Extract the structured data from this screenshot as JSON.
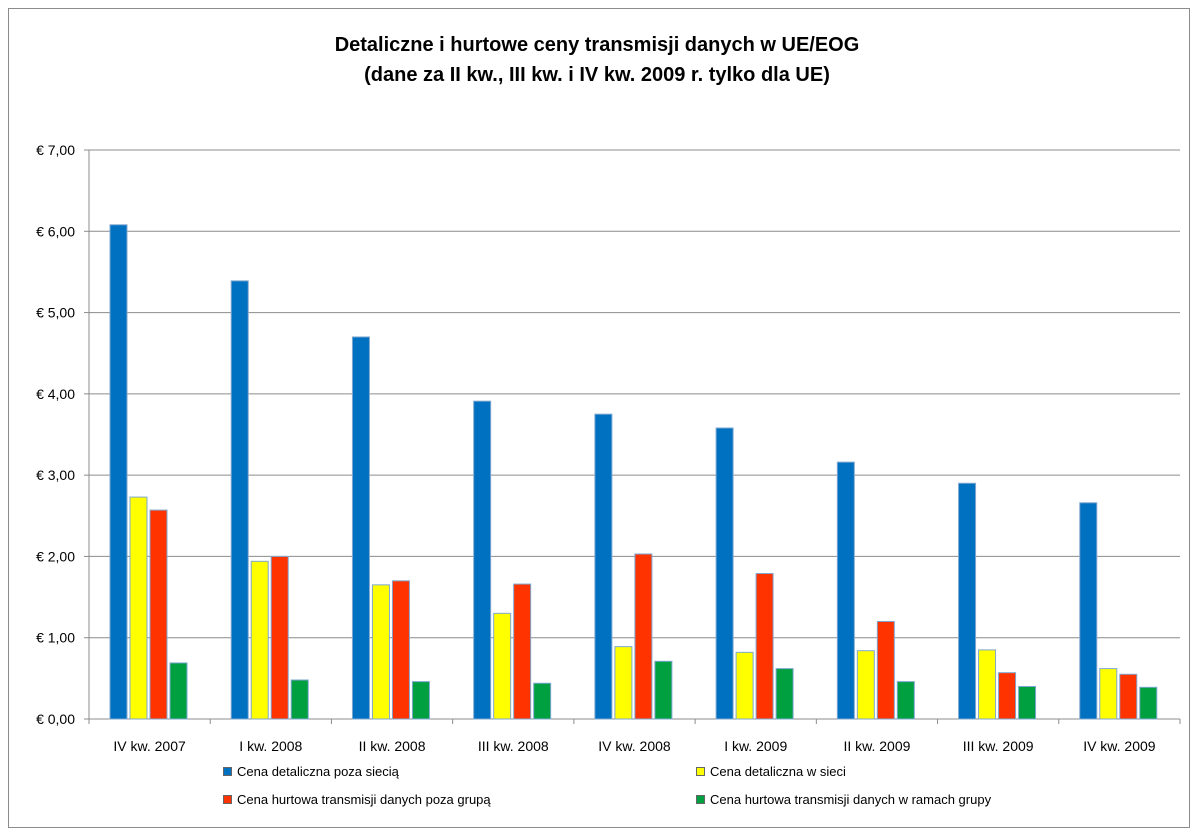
{
  "chart_data": {
    "type": "bar",
    "title": "Detaliczne i hurtowe ceny transmisji danych w UE/EOG",
    "subtitle": "(dane za II kw., III kw. i IV kw. 2009 r. tylko dla UE)",
    "categories": [
      "IV kw. 2007",
      "I kw. 2008",
      "II kw. 2008",
      "III kw. 2008",
      "IV kw. 2008",
      "I kw. 2009",
      "II kw. 2009",
      "III kw. 2009",
      "IV kw. 2009"
    ],
    "series": [
      {
        "name": "Cena detaliczna poza siecią",
        "color": "#0070c0",
        "values": [
          6.08,
          5.39,
          4.7,
          3.91,
          3.75,
          3.58,
          3.16,
          2.9,
          2.66
        ]
      },
      {
        "name": "Cena detaliczna w sieci",
        "color": "#ffff00",
        "values": [
          2.73,
          1.94,
          1.65,
          1.3,
          0.89,
          0.82,
          0.84,
          0.85,
          0.62
        ]
      },
      {
        "name": "Cena hurtowa transmisji danych poza grupą",
        "color": "#ff3300",
        "values": [
          2.57,
          2.0,
          1.7,
          1.66,
          2.03,
          1.79,
          1.2,
          0.57,
          0.55
        ]
      },
      {
        "name": "Cena hurtowa transmisji danych w ramach grupy",
        "color": "#00a040",
        "values": [
          0.69,
          0.48,
          0.46,
          0.44,
          0.71,
          0.62,
          0.46,
          0.4,
          0.39
        ]
      }
    ],
    "yticks": [
      "€ 0,00",
      "€ 1,00",
      "€ 2,00",
      "€ 3,00",
      "€ 4,00",
      "€ 5,00",
      "€ 6,00",
      "€ 7,00"
    ],
    "ylim": [
      0,
      7
    ],
    "grid": true,
    "legend_position": "bottom"
  }
}
